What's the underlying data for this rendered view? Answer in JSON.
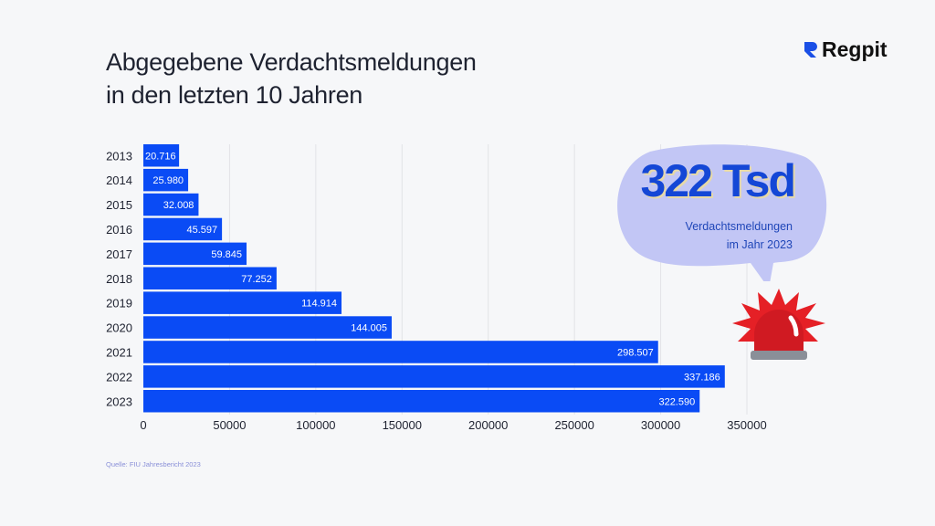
{
  "header": {
    "title_line1": "Abgegebene Verdachtsmeldungen",
    "title_line2": "in den letzten 10 Jahren",
    "logo": "Regpit"
  },
  "callout": {
    "value": "322 Tsd",
    "line1": "Verdachtsmeldungen",
    "line2": "im Jahr 2023",
    "icon": "siren-icon"
  },
  "source": "Quelle: FIU Jahresbericht 2023",
  "colors": {
    "bar": "#0a4bf5",
    "bubble": "#c2c6f5",
    "accent": "#1447d6",
    "siren": "#e0202a"
  },
  "chart_data": {
    "type": "bar",
    "orientation": "horizontal",
    "categories": [
      "2013",
      "2014",
      "2015",
      "2016",
      "2017",
      "2018",
      "2019",
      "2020",
      "2021",
      "2022",
      "2023"
    ],
    "values": [
      20716,
      25980,
      32008,
      45597,
      59845,
      77252,
      114914,
      144005,
      298507,
      337186,
      322590
    ],
    "data_labels": [
      "20.716",
      "25.980",
      "32.008",
      "45.597",
      "59.845",
      "77.252",
      "114.914",
      "144.005",
      "298.507",
      "337.186",
      "322.590"
    ],
    "xticks": [
      0,
      50000,
      100000,
      150000,
      200000,
      250000,
      300000,
      350000
    ],
    "xlim": [
      0,
      350000
    ],
    "grid": true,
    "title": "",
    "xlabel": "",
    "ylabel": ""
  }
}
